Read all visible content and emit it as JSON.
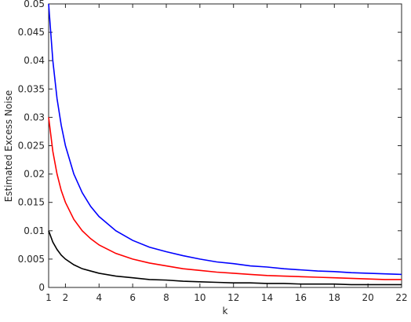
{
  "chart_data": {
    "type": "line",
    "x_label": "k",
    "y_label": "Estimated Excess Noise",
    "x": [
      1,
      1.25,
      1.5,
      1.75,
      2,
      2.5,
      3,
      3.5,
      4,
      5,
      6,
      7,
      8,
      9,
      10,
      11,
      12,
      13,
      14,
      15,
      16,
      17,
      18,
      19,
      20,
      21,
      22
    ],
    "series": [
      {
        "color": "#0000ff",
        "values": [
          0.05,
          0.04,
          0.0333,
          0.0286,
          0.025,
          0.02,
          0.0167,
          0.0143,
          0.0125,
          0.01,
          0.0083,
          0.0071,
          0.0063,
          0.0056,
          0.005,
          0.0045,
          0.0042,
          0.0038,
          0.0036,
          0.0033,
          0.0031,
          0.0029,
          0.0028,
          0.0026,
          0.0025,
          0.0024,
          0.0023
        ]
      },
      {
        "color": "#ff0000",
        "values": [
          0.03,
          0.024,
          0.02,
          0.0171,
          0.015,
          0.012,
          0.01,
          0.0086,
          0.0075,
          0.006,
          0.005,
          0.0043,
          0.0038,
          0.0033,
          0.003,
          0.0027,
          0.0025,
          0.0023,
          0.0021,
          0.002,
          0.0019,
          0.0018,
          0.0017,
          0.0016,
          0.0015,
          0.0014,
          0.0014
        ]
      },
      {
        "color": "#000000",
        "values": [
          0.01,
          0.008,
          0.0067,
          0.0057,
          0.005,
          0.004,
          0.0033,
          0.0029,
          0.0025,
          0.002,
          0.0017,
          0.0014,
          0.0013,
          0.0011,
          0.001,
          0.0009,
          0.0008,
          0.0008,
          0.0007,
          0.0007,
          0.0006,
          0.0006,
          0.0006,
          0.0005,
          0.0005,
          0.0005,
          0.0005
        ]
      }
    ],
    "xlim": [
      1,
      22
    ],
    "xticks": [
      1,
      2,
      4,
      6,
      8,
      10,
      12,
      14,
      16,
      18,
      20,
      22
    ],
    "ylim": [
      0,
      0.05
    ],
    "yticks": [
      0,
      0.005,
      0.01,
      0.015,
      0.02,
      0.025,
      0.03,
      0.035,
      0.04,
      0.045,
      0.05
    ],
    "grid": false
  }
}
